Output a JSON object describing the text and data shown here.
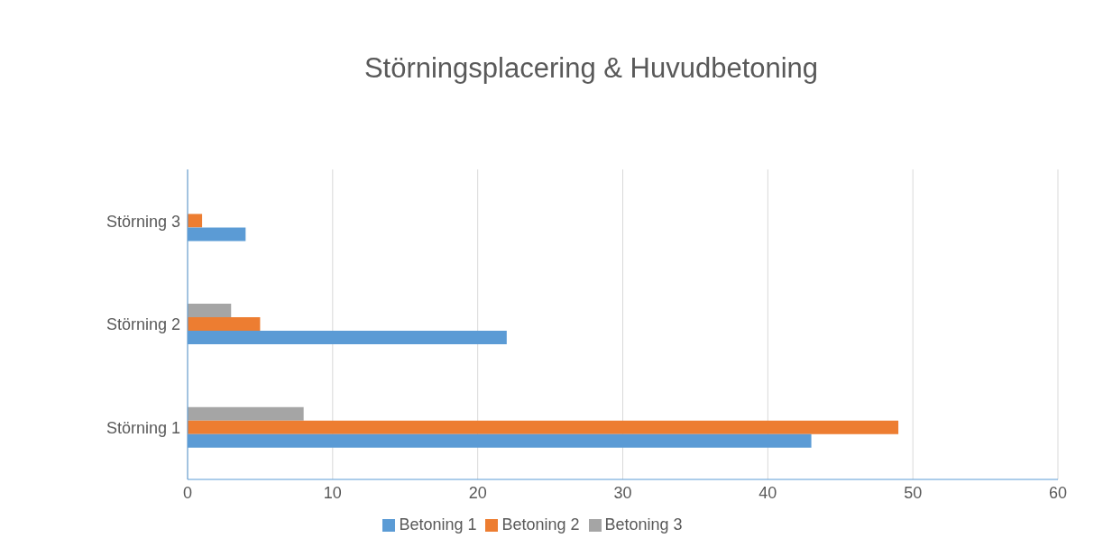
{
  "chart_data": {
    "type": "bar",
    "orientation": "horizontal",
    "title": "Störningsplacering & Huvudbetoning",
    "categories": [
      "Störning 3",
      "Störning 2",
      "Störning 1"
    ],
    "series": [
      {
        "name": "Betoning 3",
        "color": "#a5a5a5",
        "values": [
          0,
          3,
          8
        ]
      },
      {
        "name": "Betoning 2",
        "color": "#ed7d31",
        "values": [
          1,
          5,
          49
        ]
      },
      {
        "name": "Betoning 1",
        "color": "#5b9bd5",
        "values": [
          4,
          22,
          43
        ]
      }
    ],
    "xlim": [
      0,
      60
    ],
    "xticks": [
      0,
      10,
      20,
      30,
      40,
      50,
      60
    ],
    "grid": "x",
    "legend": "bottom"
  }
}
